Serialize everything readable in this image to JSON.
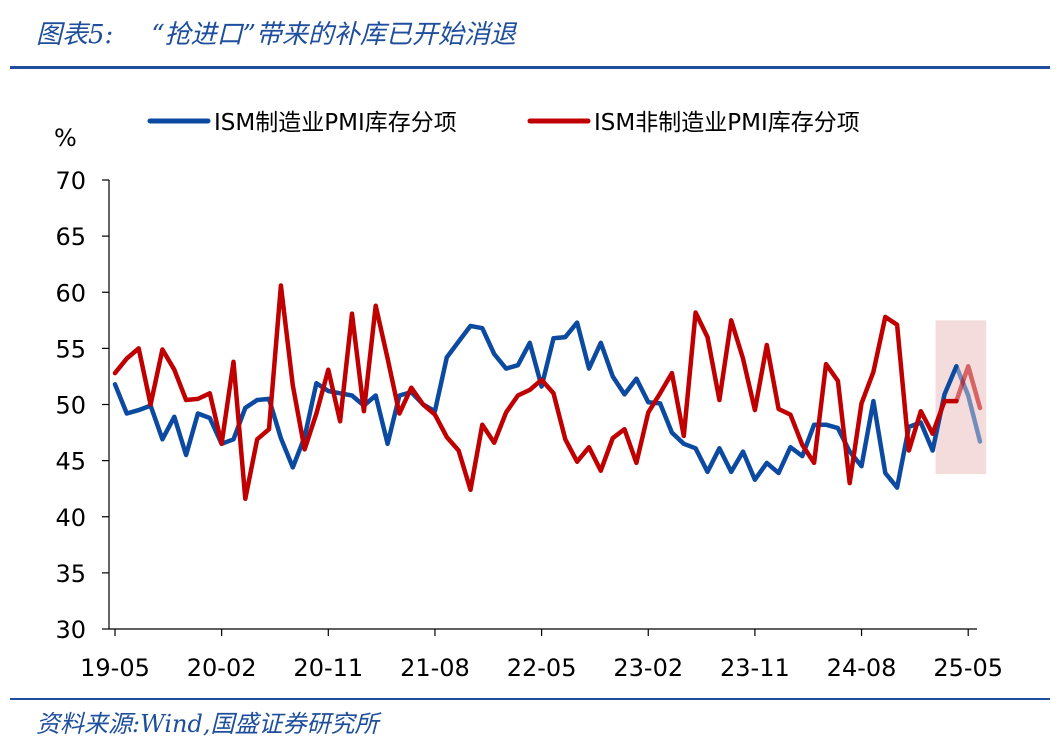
{
  "title_label": "图表5:",
  "title_text": "“抢进口”带来的补库已开始消退",
  "source": "资料来源:Wind,国盛证券研究所",
  "colors": {
    "series1": "#0b4aa0",
    "series2": "#c00000",
    "highlight": "#f4dcdc",
    "accent": "#1f4e9c"
  },
  "chart_data": {
    "type": "line",
    "ylabel": "%",
    "ylim": [
      30,
      70
    ],
    "yticks": [
      30,
      35,
      40,
      45,
      50,
      55,
      60,
      65,
      70
    ],
    "xtick_labels": [
      "19-05",
      "20-02",
      "20-11",
      "21-08",
      "22-05",
      "23-02",
      "23-11",
      "24-08",
      "25-05"
    ],
    "x_range": [
      "2019-05",
      "2025-05"
    ],
    "legend_position": "top",
    "highlight_months": [
      "2025-03",
      "2025-05"
    ],
    "series": [
      {
        "name": "ISM制造业PMI库存分项",
        "color": "#0b4aa0",
        "values": [
          51.8,
          49.2,
          49.5,
          49.9,
          46.9,
          48.9,
          45.5,
          49.2,
          48.8,
          46.5,
          46.9,
          49.7,
          50.4,
          50.5,
          47.0,
          44.4,
          47.1,
          51.9,
          51.2,
          51.0,
          50.8,
          49.9,
          50.8,
          46.5,
          50.8,
          51.1,
          50.0,
          49.4,
          54.2,
          55.6,
          57.0,
          56.8,
          54.5,
          53.2,
          53.5,
          55.5,
          51.6,
          55.9,
          56.0,
          57.3,
          53.2,
          55.5,
          52.5,
          50.9,
          52.3,
          50.2,
          50.1,
          47.5,
          46.5,
          46.1,
          44.0,
          46.1,
          44.0,
          45.8,
          43.3,
          44.8,
          43.9,
          46.2,
          45.4,
          48.2,
          48.2,
          47.9,
          45.8,
          44.5,
          50.3,
          43.9,
          42.6,
          48.0,
          48.4,
          45.9,
          50.9,
          53.4,
          50.8,
          46.7
        ],
        "highlight_values": [
          53.4,
          50.8,
          46.7
        ]
      },
      {
        "name": "ISM非制造业PMI库存分项",
        "color": "#c00000",
        "values": [
          52.8,
          54.1,
          55.0,
          50.0,
          54.9,
          53.1,
          50.4,
          50.5,
          51.0,
          46.5,
          53.8,
          41.6,
          46.9,
          47.8,
          60.6,
          51.7,
          46.0,
          49.2,
          53.1,
          48.5,
          58.1,
          49.4,
          58.8,
          54.1,
          49.2,
          51.5,
          50.0,
          49.1,
          47.1,
          45.9,
          42.4,
          48.2,
          46.6,
          49.3,
          50.8,
          51.3,
          52.2,
          51.0,
          46.9,
          44.9,
          46.2,
          44.1,
          47.0,
          47.8,
          44.8,
          49.3,
          51.0,
          52.8,
          47.2,
          58.2,
          56.0,
          50.4,
          57.5,
          54.1,
          49.5,
          55.3,
          49.6,
          49.1,
          46.4,
          44.8,
          53.6,
          52.1,
          43.0,
          50.1,
          52.9,
          57.8,
          57.1,
          45.9,
          49.4,
          47.4,
          50.3,
          50.3,
          53.4,
          49.7
        ],
        "highlight_values": [
          50.3,
          53.4,
          49.7
        ]
      }
    ]
  }
}
